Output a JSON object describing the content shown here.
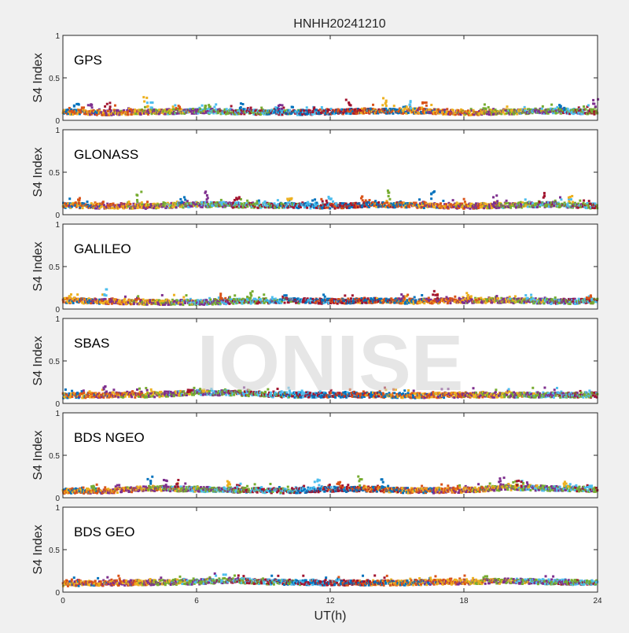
{
  "chart_data": {
    "type": "scatter",
    "title": "HNHH20241210",
    "xlabel": "UT(h)",
    "ylabel": "S4 Index",
    "xlim": [
      0,
      24
    ],
    "ylim": [
      0,
      1
    ],
    "xticks": [
      "0",
      "6",
      "12",
      "18",
      "24"
    ],
    "yticks": [
      "0",
      "0.5",
      "1"
    ],
    "watermark": "IONISE",
    "series_colors": [
      "#0072BD",
      "#D95319",
      "#EDB120",
      "#7E2F8E",
      "#77AC30",
      "#4DBEEE",
      "#A2142F"
    ],
    "panels": [
      {
        "label": "GPS",
        "baseline": [
          [
            0,
            0.1
          ],
          [
            2,
            0.09
          ],
          [
            4,
            0.1
          ],
          [
            6,
            0.11
          ],
          [
            8,
            0.1
          ],
          [
            10,
            0.09
          ],
          [
            12,
            0.1
          ],
          [
            14,
            0.11
          ],
          [
            16,
            0.11
          ],
          [
            18,
            0.09
          ],
          [
            20,
            0.1
          ],
          [
            22,
            0.11
          ],
          [
            24,
            0.1
          ]
        ],
        "spikes": [
          [
            0.6,
            0.2
          ],
          [
            1.2,
            0.21
          ],
          [
            2.0,
            0.22
          ],
          [
            3.7,
            0.29
          ],
          [
            3.9,
            0.26
          ],
          [
            5.2,
            0.24
          ],
          [
            6.5,
            0.22
          ],
          [
            8.0,
            0.2
          ],
          [
            9.8,
            0.21
          ],
          [
            12.8,
            0.25
          ],
          [
            14.4,
            0.28
          ],
          [
            15.6,
            0.23
          ],
          [
            16.2,
            0.22
          ],
          [
            19.0,
            0.19
          ],
          [
            22.4,
            0.19
          ],
          [
            23.9,
            0.26
          ]
        ]
      },
      {
        "label": "GLONASS",
        "baseline": [
          [
            0,
            0.11
          ],
          [
            2,
            0.1
          ],
          [
            4,
            0.1
          ],
          [
            6,
            0.12
          ],
          [
            8,
            0.11
          ],
          [
            10,
            0.11
          ],
          [
            12,
            0.1
          ],
          [
            14,
            0.12
          ],
          [
            16,
            0.11
          ],
          [
            18,
            0.1
          ],
          [
            20,
            0.11
          ],
          [
            22,
            0.12
          ],
          [
            24,
            0.1
          ]
        ],
        "spikes": [
          [
            0.7,
            0.2
          ],
          [
            3.4,
            0.28
          ],
          [
            5.4,
            0.25
          ],
          [
            6.4,
            0.29
          ],
          [
            7.8,
            0.22
          ],
          [
            10.2,
            0.21
          ],
          [
            12.0,
            0.22
          ],
          [
            13.5,
            0.23
          ],
          [
            14.6,
            0.31
          ],
          [
            16.6,
            0.29
          ],
          [
            19.4,
            0.23
          ],
          [
            21.5,
            0.27
          ],
          [
            22.8,
            0.22
          ]
        ]
      },
      {
        "label": "GALILEO",
        "baseline": [
          [
            0,
            0.1
          ],
          [
            2,
            0.09
          ],
          [
            4,
            0.08
          ],
          [
            6,
            0.08
          ],
          [
            8,
            0.09
          ],
          [
            10,
            0.1
          ],
          [
            12,
            0.09
          ],
          [
            14,
            0.1
          ],
          [
            16,
            0.09
          ],
          [
            18,
            0.1
          ],
          [
            20,
            0.1
          ],
          [
            22,
            0.09
          ],
          [
            24,
            0.09
          ]
        ],
        "spikes": [
          [
            0.4,
            0.16
          ],
          [
            1.9,
            0.25
          ],
          [
            7.2,
            0.19
          ],
          [
            8.4,
            0.21
          ],
          [
            11.8,
            0.17
          ],
          [
            15.2,
            0.18
          ],
          [
            16.7,
            0.26
          ],
          [
            18.2,
            0.2
          ],
          [
            20.9,
            0.17
          ],
          [
            23.6,
            0.16
          ]
        ]
      },
      {
        "label": "SBAS",
        "baseline": [
          [
            0,
            0.09
          ],
          [
            2,
            0.1
          ],
          [
            4,
            0.1
          ],
          [
            6,
            0.13
          ],
          [
            8,
            0.12
          ],
          [
            10,
            0.1
          ],
          [
            12,
            0.1
          ],
          [
            14,
            0.1
          ],
          [
            16,
            0.09
          ],
          [
            18,
            0.1
          ],
          [
            20,
            0.1
          ],
          [
            22,
            0.1
          ],
          [
            24,
            0.1
          ]
        ],
        "spikes": [
          [
            1.9,
            0.25
          ],
          [
            5.7,
            0.16
          ],
          [
            6.4,
            0.17
          ],
          [
            10.7,
            0.15
          ]
        ]
      },
      {
        "label": "BDS NGEO",
        "baseline": [
          [
            0,
            0.08
          ],
          [
            2,
            0.08
          ],
          [
            4,
            0.11
          ],
          [
            6,
            0.1
          ],
          [
            8,
            0.09
          ],
          [
            10,
            0.08
          ],
          [
            12,
            0.1
          ],
          [
            14,
            0.1
          ],
          [
            16,
            0.08
          ],
          [
            18,
            0.09
          ],
          [
            20,
            0.12
          ],
          [
            22,
            0.11
          ],
          [
            24,
            0.1
          ]
        ],
        "spikes": [
          [
            1.4,
            0.14
          ],
          [
            3.9,
            0.26
          ],
          [
            4.6,
            0.24
          ],
          [
            5.1,
            0.22
          ],
          [
            7.5,
            0.2
          ],
          [
            11.4,
            0.24
          ],
          [
            12.4,
            0.26
          ],
          [
            13.3,
            0.25
          ],
          [
            14.4,
            0.22
          ],
          [
            19.7,
            0.24
          ],
          [
            20.5,
            0.2
          ],
          [
            22.6,
            0.2
          ],
          [
            23.7,
            0.18
          ]
        ]
      },
      {
        "label": "BDS GEO",
        "baseline": [
          [
            0,
            0.1
          ],
          [
            3,
            0.11
          ],
          [
            6,
            0.12
          ],
          [
            7.5,
            0.14
          ],
          [
            9,
            0.12
          ],
          [
            12,
            0.11
          ],
          [
            15,
            0.11
          ],
          [
            18,
            0.12
          ],
          [
            20,
            0.13
          ],
          [
            22,
            0.12
          ],
          [
            24,
            0.11
          ]
        ],
        "spikes": []
      }
    ]
  }
}
